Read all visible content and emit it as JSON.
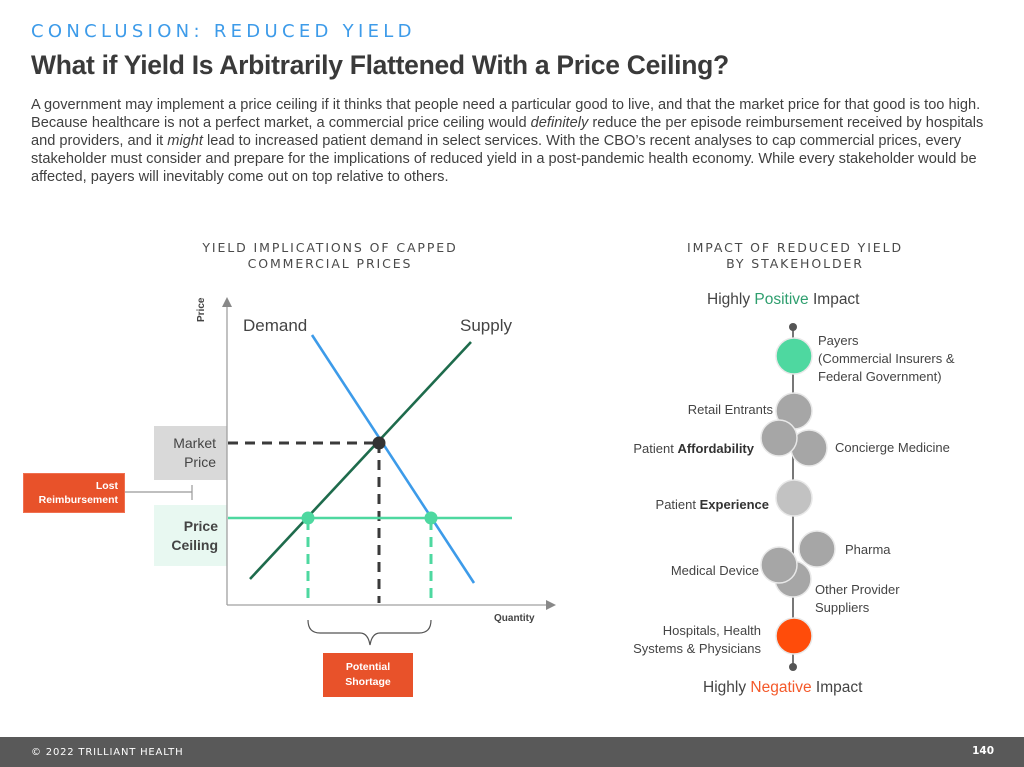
{
  "header": {
    "eyebrow": "CONCLUSION: REDUCED YIELD",
    "title": "What if Yield Is Arbitrarily Flattened With a Price Ceiling?"
  },
  "body": {
    "part1": "A government may implement a price ceiling if it thinks that people need a particular good to live, and that the market price for that good is too high. Because healthcare is not a perfect market, a commercial price ceiling would ",
    "em1": "definitely",
    "part2": " reduce the per episode reimbursement received by hospitals and providers, and it ",
    "em2": "might",
    "part3": " lead to increased patient demand in select services. With the CBO’s recent analyses to cap commercial prices, every stakeholder must consider and prepare for the implications of reduced yield in a post-pandemic health economy. While every stakeholder would be affected, payers will inevitably come out on top relative to others."
  },
  "left_diagram": {
    "title_line1": "YIELD IMPLICATIONS OF CAPPED",
    "title_line2": "COMMERCIAL PRICES",
    "y_axis_label": "Price",
    "x_axis_label": "Quantity",
    "demand_label": "Demand",
    "supply_label": "Supply",
    "market_price_line1": "Market",
    "market_price_line2": "Price",
    "price_ceiling_line1": "Price",
    "price_ceiling_line2": "Ceiling",
    "lost_reimbursement_line1": "Lost",
    "lost_reimbursement_line2": "Reimbursement",
    "potential_shortage_line1": "Potential",
    "potential_shortage_line2": "Shortage",
    "colors": {
      "demand": "#3d9be9",
      "supply": "#1e6b4c",
      "ceiling": "#4ed8a0",
      "callout": "#e8522a",
      "market_box": "#d9d9d9",
      "ceiling_box": "#e8f8f1",
      "equilibrium": "#333333"
    }
  },
  "right_diagram": {
    "title_line1": "IMPACT OF REDUCED YIELD",
    "title_line2": "BY STAKEHOLDER",
    "top_label": {
      "pre": "Highly ",
      "accent": "Positive",
      "post": " Impact",
      "accent_color": "#2e9e6e"
    },
    "bottom_label": {
      "pre": "Highly ",
      "accent": "Negative",
      "post": " Impact",
      "accent_color": "#f4592a"
    },
    "stakeholders": {
      "payers": {
        "line1": "Payers",
        "line2": "(Commercial Insurers &",
        "line3": "Federal Government)",
        "color": "#4ed8a0"
      },
      "retail": {
        "label": "Retail Entrants",
        "color": "#a6a6a6"
      },
      "affordability": {
        "pre": "Patient ",
        "bold": "Affordability",
        "color": "#a6a6a6"
      },
      "concierge": {
        "label": "Concierge Medicine",
        "color": "#a6a6a6"
      },
      "experience": {
        "pre": "Patient ",
        "bold": "Experience",
        "color": "#c2c2c2"
      },
      "pharma": {
        "label": "Pharma",
        "color": "#a6a6a6"
      },
      "medical_device": {
        "label": "Medical Device",
        "color": "#a6a6a6"
      },
      "other_provider": {
        "line1": "Other Provider",
        "line2": "Suppliers",
        "color": "#a6a6a6"
      },
      "hospitals": {
        "line1": "Hospitals, Health",
        "line2": "Systems & Physicians",
        "color": "#ff4c0a"
      }
    }
  },
  "footer": {
    "copyright": "© 2022 TRILLIANT HEALTH",
    "page_number": "140"
  }
}
